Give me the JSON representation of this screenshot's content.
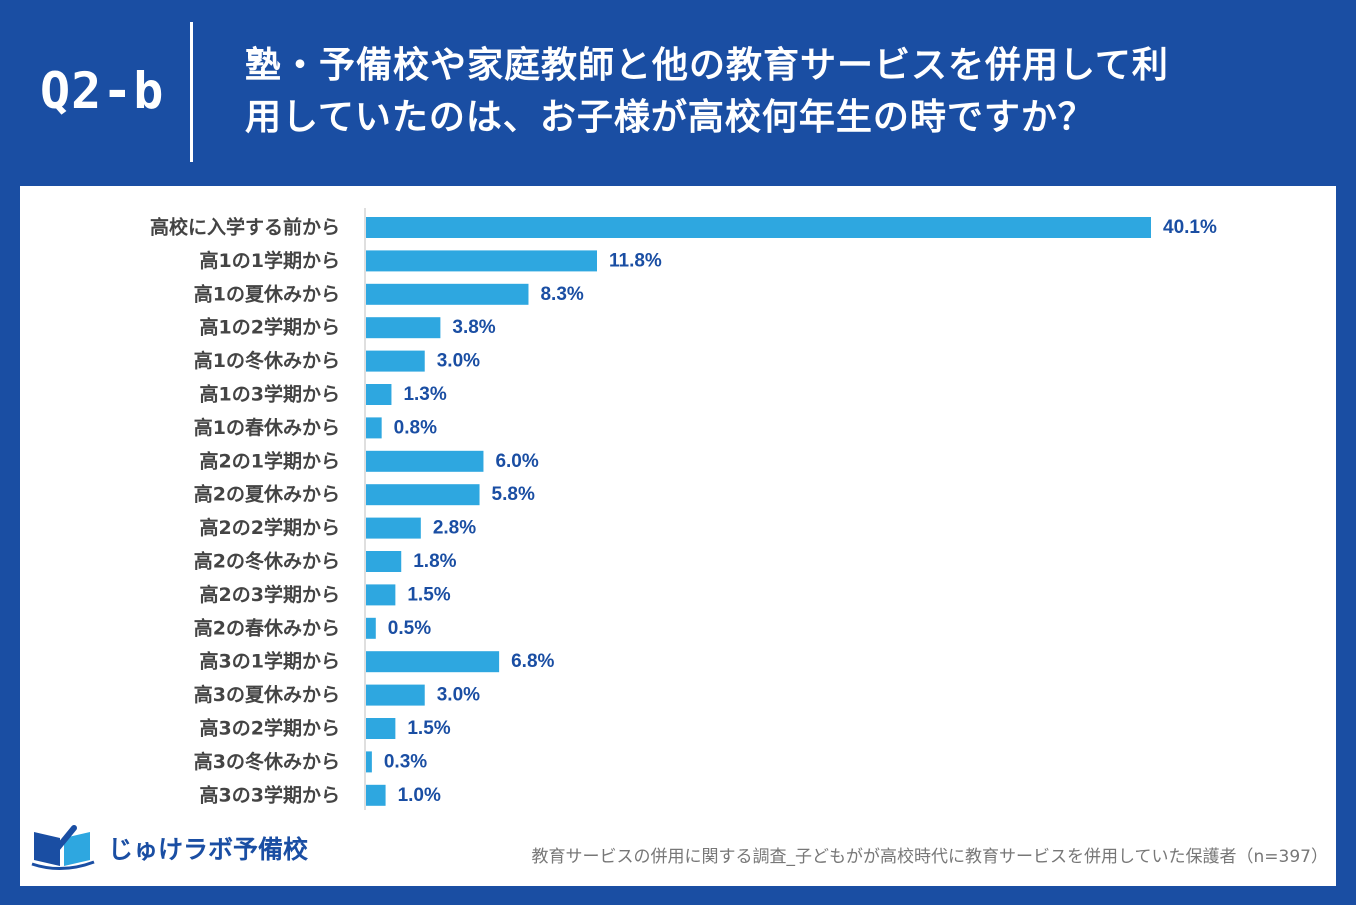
{
  "header": {
    "question_number": "Q2-b",
    "title_line1": "塾・予備校や家庭教師と他の教育サービスを併用して利",
    "title_line2": "用していたのは、お子様が高校何年生の時ですか？"
  },
  "chart_data": {
    "type": "bar",
    "orientation": "horizontal",
    "categories": [
      "高校に入学する前から",
      "高1の1学期から",
      "高1の夏休みから",
      "高1の2学期から",
      "高1の冬休みから",
      "高1の3学期から",
      "高1の春休みから",
      "高2の1学期から",
      "高2の夏休みから",
      "高2の2学期から",
      "高2の冬休みから",
      "高2の3学期から",
      "高2の春休みから",
      "高3の1学期から",
      "高3の夏休みから",
      "高3の2学期から",
      "高3の冬休みから",
      "高3の3学期から"
    ],
    "values": [
      40.1,
      11.8,
      8.3,
      3.8,
      3.0,
      1.3,
      0.8,
      6.0,
      5.8,
      2.8,
      1.8,
      1.5,
      0.5,
      6.8,
      3.0,
      1.5,
      0.3,
      1.0
    ],
    "value_labels": [
      "40.1%",
      "11.8%",
      "8.3%",
      "3.8%",
      "3.0%",
      "1.3%",
      "0.8%",
      "6.0%",
      "5.8%",
      "2.8%",
      "1.8%",
      "1.5%",
      "0.5%",
      "6.8%",
      "3.0%",
      "1.5%",
      "0.3%",
      "1.0%"
    ],
    "xlim": [
      0,
      40.1
    ],
    "bar_color": "#2ea7e0",
    "label_color": "#1a4ea3",
    "grid": false
  },
  "footer": {
    "logo_text": "じゅけラボ予備校",
    "source": "教育サービスの併用に関する調査_子どもがが高校時代に教育サービスを併用していた保護者（n=397）"
  },
  "colors": {
    "brand_blue": "#1a4ea3",
    "bar_blue": "#2ea7e0",
    "category_text": "#444444",
    "source_text": "#777777"
  },
  "icons": {
    "logo": "book-icon"
  }
}
